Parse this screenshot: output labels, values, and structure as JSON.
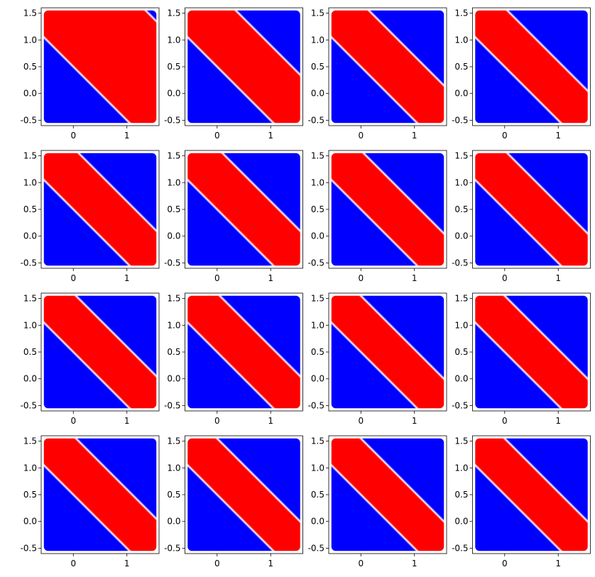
{
  "figure": {
    "rows": 4,
    "cols": 4
  },
  "chart_data": {
    "type": "heatmap",
    "grid": "4x4 small multiples",
    "xlim": [
      -0.6,
      1.6
    ],
    "ylim": [
      -0.6,
      1.6
    ],
    "x_ticks": [
      0,
      1
    ],
    "x_tick_labels": [
      "0",
      "1"
    ],
    "y_ticks": [
      -0.5,
      0.0,
      0.5,
      1.0,
      1.5
    ],
    "y_tick_labels": [
      "-0.5",
      "0.0",
      "0.5",
      "1.0",
      "1.5"
    ],
    "grid_lines": false,
    "legend": "none",
    "colormap": [
      "#0000ff",
      "#ffffff",
      "#ff0000"
    ],
    "panels": [
      {
        "index": 1,
        "lower_boundary_x_plus_y": 0.5,
        "upper_boundary_x_plus_y": 2.9
      },
      {
        "index": 2,
        "lower_boundary_x_plus_y": 0.5,
        "upper_boundary_x_plus_y": 1.9
      },
      {
        "index": 3,
        "lower_boundary_x_plus_y": 0.5,
        "upper_boundary_x_plus_y": 1.7
      },
      {
        "index": 4,
        "lower_boundary_x_plus_y": 0.5,
        "upper_boundary_x_plus_y": 1.6
      },
      {
        "index": 5,
        "lower_boundary_x_plus_y": 0.5,
        "upper_boundary_x_plus_y": 1.65
      },
      {
        "index": 6,
        "lower_boundary_x_plus_y": 0.5,
        "upper_boundary_x_plus_y": 1.65
      },
      {
        "index": 7,
        "lower_boundary_x_plus_y": 0.5,
        "upper_boundary_x_plus_y": 1.6
      },
      {
        "index": 8,
        "lower_boundary_x_plus_y": 0.5,
        "upper_boundary_x_plus_y": 1.6
      },
      {
        "index": 9,
        "lower_boundary_x_plus_y": 0.5,
        "upper_boundary_x_plus_y": 1.6
      },
      {
        "index": 10,
        "lower_boundary_x_plus_y": 0.5,
        "upper_boundary_x_plus_y": 1.6
      },
      {
        "index": 11,
        "lower_boundary_x_plus_y": 0.5,
        "upper_boundary_x_plus_y": 1.55
      },
      {
        "index": 12,
        "lower_boundary_x_plus_y": 0.5,
        "upper_boundary_x_plus_y": 1.55
      },
      {
        "index": 13,
        "lower_boundary_x_plus_y": 0.5,
        "upper_boundary_x_plus_y": 1.6
      },
      {
        "index": 14,
        "lower_boundary_x_plus_y": 0.5,
        "upper_boundary_x_plus_y": 1.55
      },
      {
        "index": 15,
        "lower_boundary_x_plus_y": 0.5,
        "upper_boundary_x_plus_y": 1.55
      },
      {
        "index": 16,
        "lower_boundary_x_plus_y": 0.5,
        "upper_boundary_x_plus_y": 1.55
      }
    ]
  }
}
